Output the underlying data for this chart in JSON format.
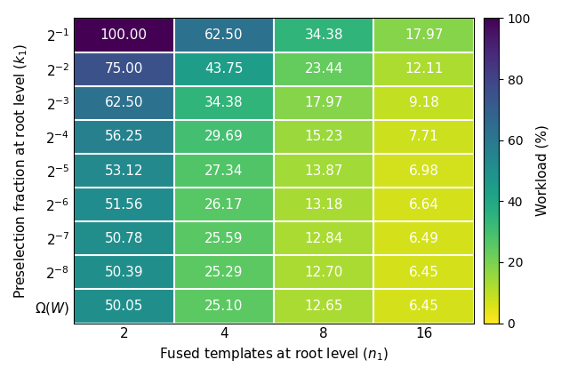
{
  "values": [
    [
      100.0,
      62.5,
      34.38,
      17.97
    ],
    [
      75.0,
      43.75,
      23.44,
      12.11
    ],
    [
      62.5,
      34.38,
      17.97,
      9.18
    ],
    [
      56.25,
      29.69,
      15.23,
      7.71
    ],
    [
      53.12,
      27.34,
      13.87,
      6.98
    ],
    [
      51.56,
      26.17,
      13.18,
      6.64
    ],
    [
      50.78,
      25.59,
      12.84,
      6.49
    ],
    [
      50.39,
      25.29,
      12.7,
      6.45
    ],
    [
      50.05,
      25.1,
      12.65,
      6.45
    ]
  ],
  "x_labels": [
    "2",
    "4",
    "8",
    "16"
  ],
  "x_axis_label": "Fused templates at root level ($n_1$)",
  "y_axis_label": "Preselection fraction at root level ($k_1$)",
  "colorbar_label": "Workload (%)",
  "vmin": 0,
  "vmax": 100,
  "cmap": "viridis_r",
  "text_color": "white",
  "cell_fontsize": 11,
  "label_fontsize": 11,
  "tick_fontsize": 11,
  "colorbar_tick_fontsize": 10,
  "colorbar_ticks": [
    0,
    20,
    40,
    60,
    80,
    100
  ],
  "grid_color": "white",
  "grid_linewidth": 1.5,
  "figsize": [
    6.4,
    4.23
  ],
  "dpi": 100
}
